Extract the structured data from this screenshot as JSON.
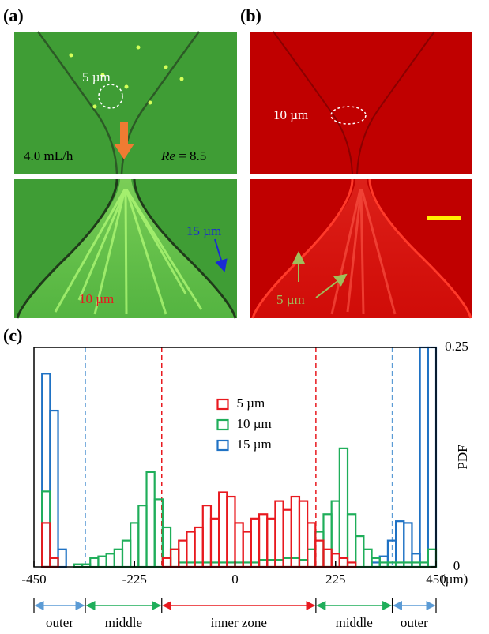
{
  "panels": [
    {
      "label": "(a)",
      "scale_text": "5 µm",
      "flow_rate": "4.0 mL/h",
      "re_symbol": "Re",
      "re_value": " = 8.5",
      "big_label": "15 µm",
      "mid_label": "10 µm"
    },
    {
      "label": "(b)",
      "scale_text": "10 µm",
      "small_label": "5 µm"
    }
  ],
  "chart_data": {
    "type": "histogram",
    "panel_label": "(c)",
    "bins": [
      -450,
      -432,
      -414,
      -396,
      -378,
      -360,
      -342,
      -324,
      -306,
      -288,
      -270,
      -252,
      -234,
      -216,
      -198,
      -180,
      -162,
      -144,
      -126,
      -108,
      -90,
      -72,
      -54,
      -36,
      -18,
      0,
      18,
      36,
      54,
      72,
      90,
      108,
      126,
      144,
      162,
      180,
      198,
      216,
      234,
      252,
      270,
      288,
      306,
      324,
      342,
      360,
      378,
      396,
      414,
      432,
      450
    ],
    "series": [
      {
        "name": "5 µm",
        "color": "#e8191f",
        "values": [
          0,
          0.05,
          0.01,
          0,
          0,
          0,
          0,
          0,
          0,
          0,
          0,
          0,
          0,
          0,
          0,
          0,
          0.01,
          0.02,
          0.03,
          0.04,
          0.045,
          0.07,
          0.055,
          0.085,
          0.08,
          0.05,
          0.04,
          0.055,
          0.06,
          0.055,
          0.075,
          0.065,
          0.08,
          0.075,
          0.05,
          0.03,
          0.02,
          0.015,
          0.01,
          0.005,
          0,
          0,
          0,
          0,
          0,
          0,
          0,
          0,
          0,
          0
        ]
      },
      {
        "name": "10 µm",
        "color": "#1fae5a",
        "values": [
          0,
          0.086,
          0.01,
          0,
          0,
          0.003,
          0.003,
          0.01,
          0.012,
          0.015,
          0.02,
          0.03,
          0.05,
          0.07,
          0.108,
          0.077,
          0.045,
          0.02,
          0.005,
          0.005,
          0.005,
          0.005,
          0.005,
          0.005,
          0.005,
          0.005,
          0.005,
          0.005,
          0.008,
          0.008,
          0.008,
          0.01,
          0.01,
          0.008,
          0.02,
          0.04,
          0.06,
          0.075,
          0.135,
          0.06,
          0.035,
          0.02,
          0.01,
          0.005,
          0.005,
          0.005,
          0.005,
          0.005,
          0.005,
          0.02
        ]
      },
      {
        "name": "15 µm",
        "color": "#1f72c4",
        "values": [
          0,
          0.22,
          0.178,
          0.02,
          0,
          0,
          0,
          0,
          0,
          0,
          0,
          0,
          0,
          0,
          0,
          0,
          0,
          0,
          0,
          0,
          0,
          0,
          0,
          0,
          0,
          0,
          0,
          0,
          0,
          0,
          0,
          0,
          0,
          0,
          0,
          0,
          0,
          0,
          0,
          0,
          0,
          0,
          0.005,
          0.012,
          0.03,
          0.052,
          0.05,
          0.015,
          0.25,
          0.25
        ]
      }
    ],
    "xlim": [
      -450,
      450
    ],
    "ylim": [
      0,
      0.25
    ],
    "xticks": [
      -450,
      -225,
      0,
      225,
      450
    ],
    "yticks": [
      0,
      0.25
    ],
    "x_unit": "(µm)",
    "y_label": "PDF",
    "legend": "upper center",
    "zone_edges": [
      -335,
      -164,
      181,
      352
    ],
    "zone_edge_colors": [
      "#5b9bd5",
      "#e8191f",
      "#e8191f",
      "#5b9bd5"
    ],
    "zones": [
      {
        "label": "outer",
        "color": "#5b9bd5"
      },
      {
        "label": "middle",
        "color": "#1fae5a"
      },
      {
        "label": "inner zone",
        "color": "#e8191f"
      },
      {
        "label": "middle",
        "color": "#1fae5a"
      },
      {
        "label": "outer",
        "color": "#5b9bd5"
      }
    ]
  }
}
